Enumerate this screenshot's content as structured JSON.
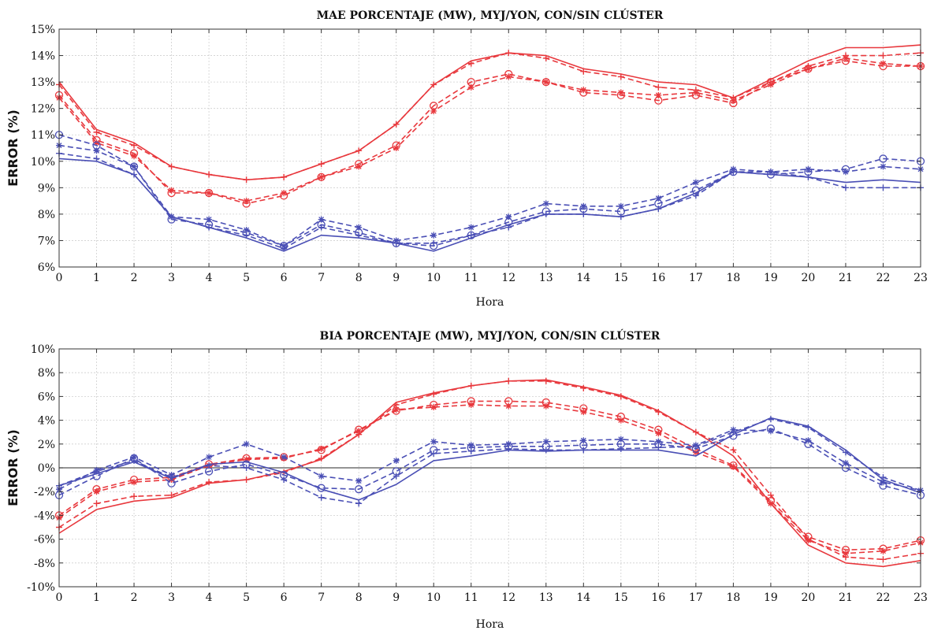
{
  "chart_data": [
    {
      "type": "line",
      "title": "MAE PORCENTAJE (MW), MYJ/YON, CON/SIN CLÚSTER",
      "xlabel": "Hora",
      "ylabel": "ERROR (%)",
      "x": [
        0,
        1,
        2,
        3,
        4,
        5,
        6,
        7,
        8,
        9,
        10,
        11,
        12,
        13,
        14,
        15,
        16,
        17,
        18,
        19,
        20,
        21,
        22,
        23
      ],
      "x_ticks": [
        "0",
        "1",
        "2",
        "3",
        "4",
        "5",
        "6",
        "7",
        "8",
        "9",
        "10",
        "11",
        "12",
        "13",
        "14",
        "15",
        "16",
        "17",
        "18",
        "19",
        "20",
        "21",
        "22",
        "23"
      ],
      "y_ticks": [
        "6%",
        "7%",
        "8%",
        "9%",
        "10%",
        "11%",
        "12%",
        "13%",
        "14%",
        "15%"
      ],
      "ylim": [
        6,
        15
      ],
      "grid": true,
      "zero_line": false,
      "series": [
        {
          "color": "#e8383d",
          "style": "solid",
          "marker": "none",
          "values": [
            13.0,
            11.2,
            10.7,
            9.8,
            9.5,
            9.3,
            9.4,
            9.9,
            10.4,
            11.4,
            12.9,
            13.8,
            14.1,
            14.0,
            13.5,
            13.3,
            13.0,
            12.9,
            12.4,
            13.1,
            13.8,
            14.3,
            14.3,
            14.4
          ]
        },
        {
          "color": "#e8383d",
          "style": "dashed",
          "marker": "plus",
          "values": [
            12.9,
            11.1,
            10.6,
            9.8,
            9.5,
            9.3,
            9.4,
            9.9,
            10.4,
            11.4,
            12.9,
            13.7,
            14.1,
            13.9,
            13.4,
            13.2,
            12.8,
            12.7,
            12.4,
            13.0,
            13.6,
            14.0,
            14.0,
            14.1
          ]
        },
        {
          "color": "#e8383d",
          "style": "dashed",
          "marker": "circle",
          "values": [
            12.5,
            10.8,
            10.3,
            8.8,
            8.8,
            8.4,
            8.7,
            9.4,
            9.9,
            10.6,
            12.1,
            13.0,
            13.3,
            13.0,
            12.6,
            12.5,
            12.3,
            12.5,
            12.2,
            13.0,
            13.5,
            13.8,
            13.6,
            13.6
          ]
        },
        {
          "color": "#e8383d",
          "style": "dashed",
          "marker": "asterisk",
          "values": [
            12.4,
            10.7,
            10.2,
            8.9,
            8.8,
            8.5,
            8.8,
            9.4,
            9.8,
            10.5,
            11.9,
            12.8,
            13.2,
            13.0,
            12.7,
            12.6,
            12.5,
            12.6,
            12.3,
            12.9,
            13.5,
            13.9,
            13.7,
            13.6
          ]
        },
        {
          "color": "#4a4fb5",
          "style": "solid",
          "marker": "none",
          "values": [
            10.1,
            10.0,
            9.5,
            7.9,
            7.5,
            7.1,
            6.6,
            7.2,
            7.1,
            6.9,
            6.6,
            7.1,
            7.6,
            8.0,
            8.0,
            7.9,
            8.2,
            8.8,
            9.6,
            9.5,
            9.4,
            9.2,
            9.3,
            9.2
          ]
        },
        {
          "color": "#4a4fb5",
          "style": "dashed",
          "marker": "plus",
          "values": [
            10.3,
            10.1,
            9.5,
            7.9,
            7.5,
            7.2,
            6.7,
            7.5,
            7.2,
            6.9,
            6.9,
            7.2,
            7.5,
            8.0,
            8.0,
            7.9,
            8.2,
            8.7,
            9.6,
            9.6,
            9.4,
            9.0,
            9.0,
            9.0
          ]
        },
        {
          "color": "#4a4fb5",
          "style": "dashed",
          "marker": "circle",
          "values": [
            11.0,
            10.6,
            9.8,
            7.8,
            7.6,
            7.3,
            6.8,
            7.6,
            7.3,
            6.9,
            6.8,
            7.2,
            7.7,
            8.1,
            8.2,
            8.1,
            8.4,
            8.9,
            9.6,
            9.5,
            9.6,
            9.7,
            10.1,
            10.0
          ]
        },
        {
          "color": "#4a4fb5",
          "style": "dashed",
          "marker": "asterisk",
          "values": [
            10.6,
            10.4,
            9.8,
            7.9,
            7.8,
            7.4,
            6.8,
            7.8,
            7.5,
            7.0,
            7.2,
            7.5,
            7.9,
            8.4,
            8.3,
            8.3,
            8.6,
            9.2,
            9.7,
            9.6,
            9.7,
            9.6,
            9.8,
            9.7
          ]
        }
      ]
    },
    {
      "type": "line",
      "title": "BIA PORCENTAJE (MW), MYJ/YON, CON/SIN CLÚSTER",
      "xlabel": "Hora",
      "ylabel": "ERROR (%)",
      "x": [
        0,
        1,
        2,
        3,
        4,
        5,
        6,
        7,
        8,
        9,
        10,
        11,
        12,
        13,
        14,
        15,
        16,
        17,
        18,
        19,
        20,
        21,
        22,
        23
      ],
      "x_ticks": [
        "0",
        "1",
        "2",
        "3",
        "4",
        "5",
        "6",
        "7",
        "8",
        "9",
        "10",
        "11",
        "12",
        "13",
        "14",
        "15",
        "16",
        "17",
        "18",
        "19",
        "20",
        "21",
        "22",
        "23"
      ],
      "y_ticks": [
        "-10%",
        "-8%",
        "-6%",
        "-4%",
        "-2%",
        "0%",
        "2%",
        "4%",
        "6%",
        "8%",
        "10%"
      ],
      "ylim": [
        -10,
        10
      ],
      "grid": true,
      "zero_line": true,
      "series": [
        {
          "color": "#e8383d",
          "style": "solid",
          "marker": "none",
          "values": [
            -5.5,
            -3.5,
            -2.8,
            -2.5,
            -1.3,
            -1.0,
            -0.3,
            0.7,
            2.8,
            5.5,
            6.3,
            6.9,
            7.3,
            7.4,
            6.8,
            6.1,
            4.8,
            3.0,
            1.0,
            -3.0,
            -6.5,
            -8.0,
            -8.3,
            -7.8
          ]
        },
        {
          "color": "#e8383d",
          "style": "dashed",
          "marker": "plus",
          "values": [
            -5.0,
            -3.0,
            -2.4,
            -2.3,
            -1.2,
            -1.0,
            -0.4,
            0.8,
            2.8,
            5.3,
            6.2,
            6.9,
            7.3,
            7.3,
            6.7,
            6.0,
            4.7,
            3.0,
            1.5,
            -2.3,
            -6.0,
            -7.5,
            -7.7,
            -7.2
          ]
        },
        {
          "color": "#e8383d",
          "style": "dashed",
          "marker": "circle",
          "values": [
            -4.0,
            -1.8,
            -1.0,
            -0.8,
            0.3,
            0.8,
            0.9,
            1.5,
            3.2,
            4.8,
            5.3,
            5.6,
            5.6,
            5.5,
            5.0,
            4.3,
            3.2,
            1.6,
            0.2,
            -2.8,
            -5.8,
            -6.9,
            -6.8,
            -6.1
          ]
        },
        {
          "color": "#e8383d",
          "style": "dashed",
          "marker": "asterisk",
          "values": [
            -4.2,
            -2.0,
            -1.2,
            -1.0,
            0.2,
            0.7,
            0.8,
            1.6,
            3.1,
            4.9,
            5.1,
            5.3,
            5.2,
            5.2,
            4.7,
            4.0,
            2.9,
            1.3,
            0.1,
            -3.0,
            -6.1,
            -7.2,
            -7.0,
            -6.3
          ]
        },
        {
          "color": "#4a4fb5",
          "style": "solid",
          "marker": "none",
          "values": [
            -1.5,
            -0.5,
            0.5,
            -0.9,
            0.3,
            0.5,
            -0.4,
            -1.8,
            -2.7,
            -1.4,
            0.6,
            1.0,
            1.5,
            1.4,
            1.5,
            1.5,
            1.5,
            1.0,
            2.8,
            4.2,
            3.5,
            1.5,
            -1.0,
            -2.1
          ]
        },
        {
          "color": "#4a4fb5",
          "style": "dashed",
          "marker": "plus",
          "values": [
            -1.5,
            -0.3,
            0.6,
            -0.8,
            0.2,
            0.0,
            -1.0,
            -2.5,
            -3.0,
            -0.7,
            1.2,
            1.4,
            1.6,
            1.5,
            1.5,
            1.6,
            1.7,
            1.8,
            3.0,
            4.1,
            3.4,
            1.3,
            -0.8,
            -1.9
          ]
        },
        {
          "color": "#4a4fb5",
          "style": "dashed",
          "marker": "circle",
          "values": [
            -2.3,
            -0.7,
            0.8,
            -1.3,
            -0.3,
            0.3,
            -0.6,
            -1.7,
            -1.8,
            -0.3,
            1.5,
            1.7,
            1.8,
            1.8,
            1.9,
            2.0,
            2.0,
            1.6,
            2.7,
            3.3,
            2.0,
            0.0,
            -1.5,
            -2.3
          ]
        },
        {
          "color": "#4a4fb5",
          "style": "dashed",
          "marker": "asterisk",
          "values": [
            -1.8,
            -0.2,
            0.9,
            -0.6,
            0.9,
            2.0,
            0.9,
            -0.7,
            -1.1,
            0.6,
            2.2,
            1.9,
            2.0,
            2.2,
            2.3,
            2.4,
            2.2,
            1.9,
            3.2,
            3.1,
            2.3,
            0.4,
            -1.2,
            -1.9
          ]
        }
      ]
    }
  ]
}
